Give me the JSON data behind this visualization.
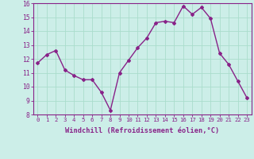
{
  "hours": [
    0,
    1,
    2,
    3,
    4,
    5,
    6,
    7,
    8,
    9,
    10,
    11,
    12,
    13,
    14,
    15,
    16,
    17,
    18,
    19,
    20,
    21,
    22,
    23
  ],
  "values": [
    11.7,
    12.3,
    12.6,
    11.2,
    10.8,
    10.5,
    10.5,
    9.6,
    8.3,
    11.0,
    11.9,
    12.8,
    13.5,
    14.6,
    14.7,
    14.6,
    15.8,
    15.2,
    15.7,
    14.9,
    12.4,
    11.6,
    10.4,
    9.2
  ],
  "line_color": "#882288",
  "marker": "D",
  "marker_size": 2,
  "line_width": 1.0,
  "bg_color": "#cceee8",
  "grid_color": "#aaddcc",
  "xlabel": "Windchill (Refroidissement éolien,°C)",
  "xlabel_color": "#882288",
  "tick_color": "#882288",
  "ylim": [
    8,
    16
  ],
  "yticks": [
    8,
    9,
    10,
    11,
    12,
    13,
    14,
    15,
    16
  ],
  "spine_color": "#882288",
  "xtick_fontsize": 5.2,
  "ytick_fontsize": 5.8,
  "xlabel_fontsize": 6.2
}
